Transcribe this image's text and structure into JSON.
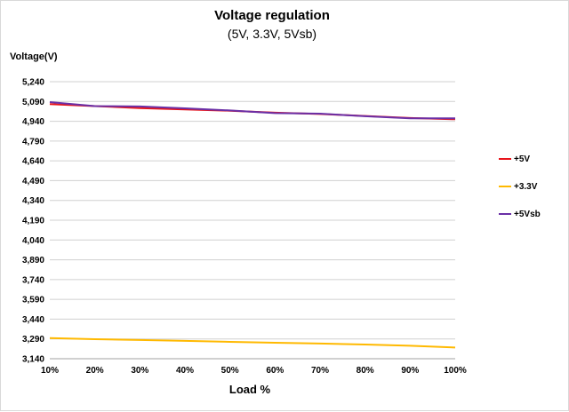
{
  "chart_data": {
    "type": "line",
    "title": "Voltage regulation",
    "subtitle": "(5V, 3.3V, 5Vsb)",
    "xlabel": "Load %",
    "ylabel": "Voltage(V)",
    "categories": [
      "10%",
      "20%",
      "30%",
      "40%",
      "50%",
      "60%",
      "70%",
      "80%",
      "90%",
      "100%"
    ],
    "yticks": [
      "5,240",
      "5,090",
      "4,940",
      "4,790",
      "4,640",
      "4,490",
      "4,340",
      "4,190",
      "4,040",
      "3,890",
      "3,740",
      "3,590",
      "3,440",
      "3,290",
      "3,140"
    ],
    "ylim": [
      3140,
      5240
    ],
    "grid": true,
    "legend_position": "right",
    "series": [
      {
        "name": "+5V",
        "color": "#e8141b",
        "values": [
          5070,
          5055,
          5040,
          5030,
          5020,
          5005,
          4995,
          4980,
          4965,
          4955
        ]
      },
      {
        "name": "+3.3V",
        "color": "#ffb900",
        "values": [
          3297,
          3288,
          3282,
          3275,
          3268,
          3261,
          3255,
          3248,
          3238,
          3225
        ]
      },
      {
        "name": "+5Vsb",
        "color": "#6a2fa6",
        "values": [
          5085,
          5055,
          5052,
          5038,
          5022,
          5002,
          4998,
          4978,
          4962,
          4962
        ]
      }
    ]
  }
}
